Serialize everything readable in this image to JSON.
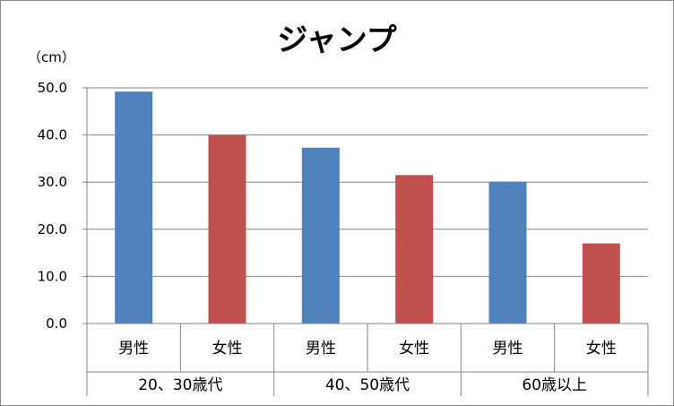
{
  "chart_data": {
    "type": "bar",
    "title": "ジャンプ",
    "ylabel": "（cm）",
    "ylim": [
      0,
      50
    ],
    "y_ticks": [
      "0.0",
      "10.0",
      "20.0",
      "30.0",
      "40.0",
      "50.0"
    ],
    "grid": true,
    "categories": [
      "男性",
      "女性",
      "男性",
      "女性",
      "男性",
      "女性"
    ],
    "groups": [
      "20、30歳代",
      "40、50歳代",
      "60歳以上"
    ],
    "values": [
      49.2,
      40.0,
      37.3,
      31.5,
      30.1,
      17.0
    ],
    "colors": [
      "#4f81bd",
      "#c0504d",
      "#4f81bd",
      "#c0504d",
      "#4f81bd",
      "#c0504d"
    ]
  }
}
